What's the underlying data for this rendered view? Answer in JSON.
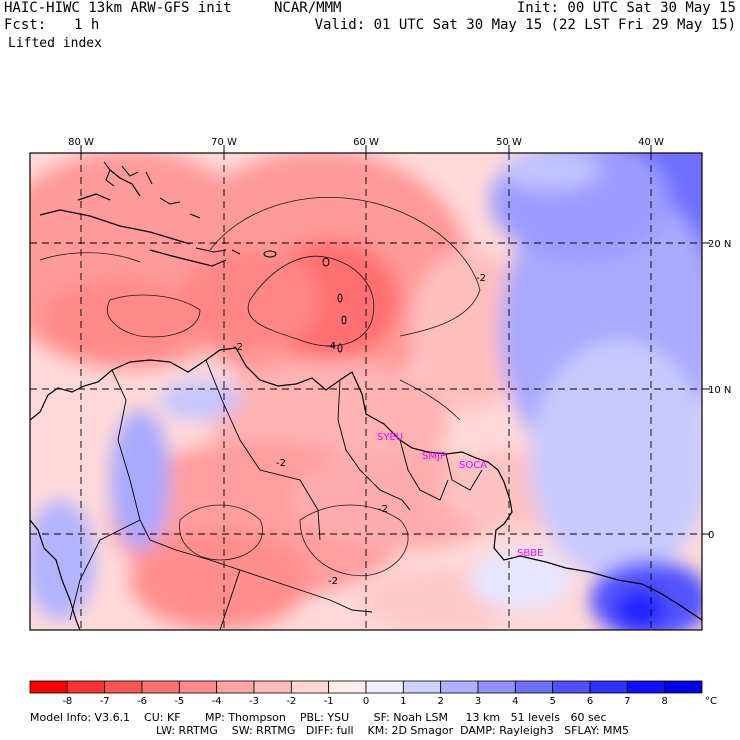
{
  "header": {
    "model": "HAIC-HIWC 13km ARW-GFS init",
    "center": "NCAR/MMM",
    "init": "Init: 00 UTC Sat 30 May 15",
    "fcst_label": "Fcst:",
    "fcst_value": "1 h",
    "valid": "Valid: 01 UTC Sat 30 May 15 (22 LST Fri 29 May 15)",
    "field": "Lifted index"
  },
  "map": {
    "lon_labels": [
      "80 W",
      "70 W",
      "60 W",
      "50 W",
      "40 W"
    ],
    "lat_labels": [
      "20 N",
      "10 N",
      "0"
    ],
    "contour_labels": [
      "-2",
      "-4",
      "-2",
      "-2",
      "-2",
      "-2"
    ],
    "stations": [
      "SYEU",
      "SMJP",
      "SOCA",
      "SBBE"
    ],
    "colors": {
      "station": "#ff00ff",
      "unstable": "#ff3b3b",
      "stable": "#3b3bff"
    }
  },
  "colorbar": {
    "ticks": [
      "-8",
      "-7",
      "-6",
      "-5",
      "-4",
      "-3",
      "-2",
      "-1",
      "0",
      "1",
      "2",
      "3",
      "4",
      "5",
      "6",
      "7",
      "8"
    ],
    "unit": "°C",
    "colors": [
      "#ff0000",
      "#ff3333",
      "#ff5454",
      "#ff7070",
      "#ff8a8a",
      "#ffa3a3",
      "#ffbcbc",
      "#ffd6d6",
      "#ffeeee",
      "#eeeeff",
      "#d0d0ff",
      "#b0b0ff",
      "#9090ff",
      "#7070ff",
      "#5050ff",
      "#3030ff",
      "#1010ff",
      "#0000e8"
    ]
  },
  "footer": {
    "line1": "Model Info: V3.6.1    CU: KF       MP: Thompson    PBL: YSU       SF: Noah LSM     13 km   51 levels   60 sec",
    "line2": "LW: RRTMG    SW: RRTMG   DIFF: full    KM: 2D Smagor  DAMP: Rayleigh3   SFLAY: MM5"
  }
}
